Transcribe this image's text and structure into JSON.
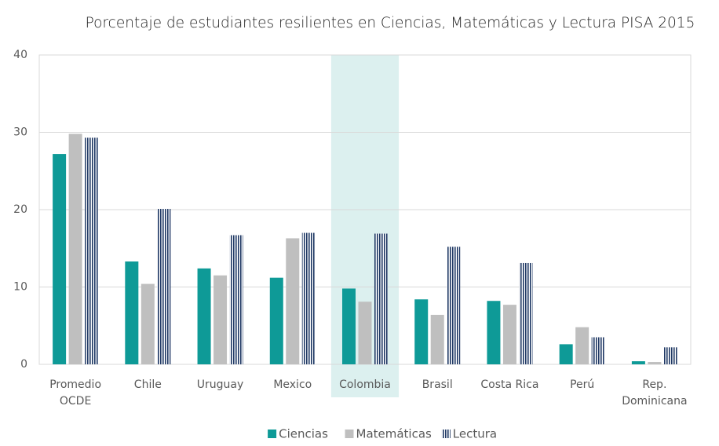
{
  "chart_data": {
    "type": "bar",
    "title": "Porcentaje de estudiantes resilientes en Ciencias, Matemáticas y Lectura PISA 2015",
    "categories": [
      "Promedio\nOCDE",
      "Chile",
      "Uruguay",
      "Mexico",
      "Colombia",
      "Brasil",
      "Costa Rica",
      "Perú",
      "Rep.\nDominicana"
    ],
    "series": [
      {
        "name": "Ciencias",
        "color": "#0e9a97",
        "values": [
          27.2,
          13.3,
          12.4,
          11.2,
          9.8,
          8.4,
          8.2,
          2.6,
          0.4
        ]
      },
      {
        "name": "Matemáticas",
        "color": "#bfbfbf",
        "values": [
          29.8,
          10.4,
          11.5,
          16.3,
          8.1,
          6.4,
          7.7,
          4.8,
          0.3
        ]
      },
      {
        "name": "Lectura",
        "color": "#1f3864",
        "pattern": "vertical-stripes",
        "values": [
          29.3,
          20.1,
          16.7,
          17.0,
          16.9,
          15.2,
          13.1,
          3.5,
          2.2
        ]
      }
    ],
    "ylim": [
      0,
      40
    ],
    "yticks": [
      0,
      10,
      20,
      30,
      40
    ],
    "grid": true,
    "highlight_index": 4,
    "highlight_color": "#dcf0ef",
    "legend": "bottom"
  }
}
